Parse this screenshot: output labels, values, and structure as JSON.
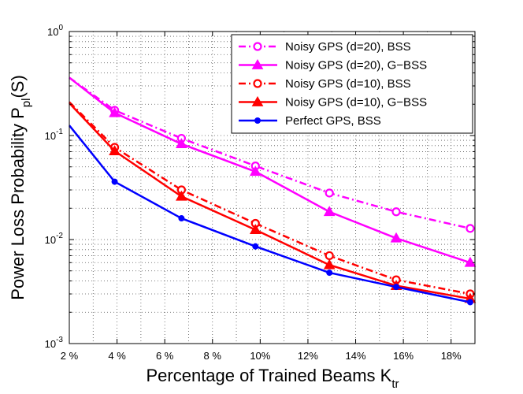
{
  "chart_data": {
    "type": "line",
    "title": "",
    "xlabel": "Percentage of Trained Beams K",
    "xlabel_sub": "tr",
    "ylabel": "Power Loss Probability P",
    "ylabel_sub": "pl",
    "ylabel_suffix": "(S)",
    "x_scale": "linear",
    "y_scale": "log",
    "xlim": [
      2,
      19
    ],
    "ylim": [
      0.001,
      1
    ],
    "x_ticks": [
      {
        "value": 2,
        "label": "2 %"
      },
      {
        "value": 4,
        "label": "4 %"
      },
      {
        "value": 6,
        "label": "6 %"
      },
      {
        "value": 8,
        "label": "8 %"
      },
      {
        "value": 10,
        "label": "10%"
      },
      {
        "value": 12,
        "label": "12%"
      },
      {
        "value": 14,
        "label": "14%"
      },
      {
        "value": 16,
        "label": "16%"
      },
      {
        "value": 18,
        "label": "18%"
      }
    ],
    "y_ticks": [
      {
        "value": 1,
        "base": "10",
        "exp": "0"
      },
      {
        "value": 0.1,
        "base": "10",
        "exp": "-1"
      },
      {
        "value": 0.01,
        "base": "10",
        "exp": "-2"
      },
      {
        "value": 0.001,
        "base": "10",
        "exp": "-3"
      }
    ],
    "grid": true,
    "legend_position": "top-right",
    "series": [
      {
        "name": "Noisy GPS (d=20), BSS",
        "color": "#ff00ff",
        "dash": "dashdot",
        "marker": "circle-open",
        "x": [
          2,
          3.9,
          6.7,
          9.8,
          12.9,
          15.7,
          18.8
        ],
        "y": [
          0.36,
          0.175,
          0.094,
          0.051,
          0.028,
          0.0185,
          0.0128
        ]
      },
      {
        "name": "Noisy GPS (d=20), G−BSS",
        "color": "#ff00ff",
        "dash": "solid",
        "marker": "triangle",
        "x": [
          2,
          3.9,
          6.7,
          9.8,
          12.9,
          15.7,
          18.8
        ],
        "y": [
          0.36,
          0.165,
          0.083,
          0.045,
          0.0185,
          0.0103,
          0.006
        ]
      },
      {
        "name": "Noisy GPS (d=10), BSS",
        "color": "#ff0000",
        "dash": "dashdot",
        "marker": "circle-open",
        "x": [
          2,
          3.9,
          6.7,
          9.8,
          12.9,
          15.7,
          18.8
        ],
        "y": [
          0.21,
          0.077,
          0.03,
          0.0143,
          0.007,
          0.0041,
          0.003
        ]
      },
      {
        "name": "Noisy GPS (d=10), G−BSS",
        "color": "#ff0000",
        "dash": "solid",
        "marker": "triangle",
        "x": [
          2,
          3.9,
          6.7,
          9.8,
          12.9,
          15.7,
          18.8
        ],
        "y": [
          0.205,
          0.071,
          0.026,
          0.0124,
          0.0057,
          0.0036,
          0.0027
        ]
      },
      {
        "name": "Perfect GPS, BSS",
        "color": "#0000ff",
        "dash": "solid",
        "marker": "dot",
        "x": [
          2,
          3.9,
          6.7,
          9.8,
          12.9,
          15.7,
          18.8
        ],
        "y": [
          0.125,
          0.036,
          0.016,
          0.0086,
          0.0048,
          0.0035,
          0.0025
        ]
      }
    ]
  }
}
